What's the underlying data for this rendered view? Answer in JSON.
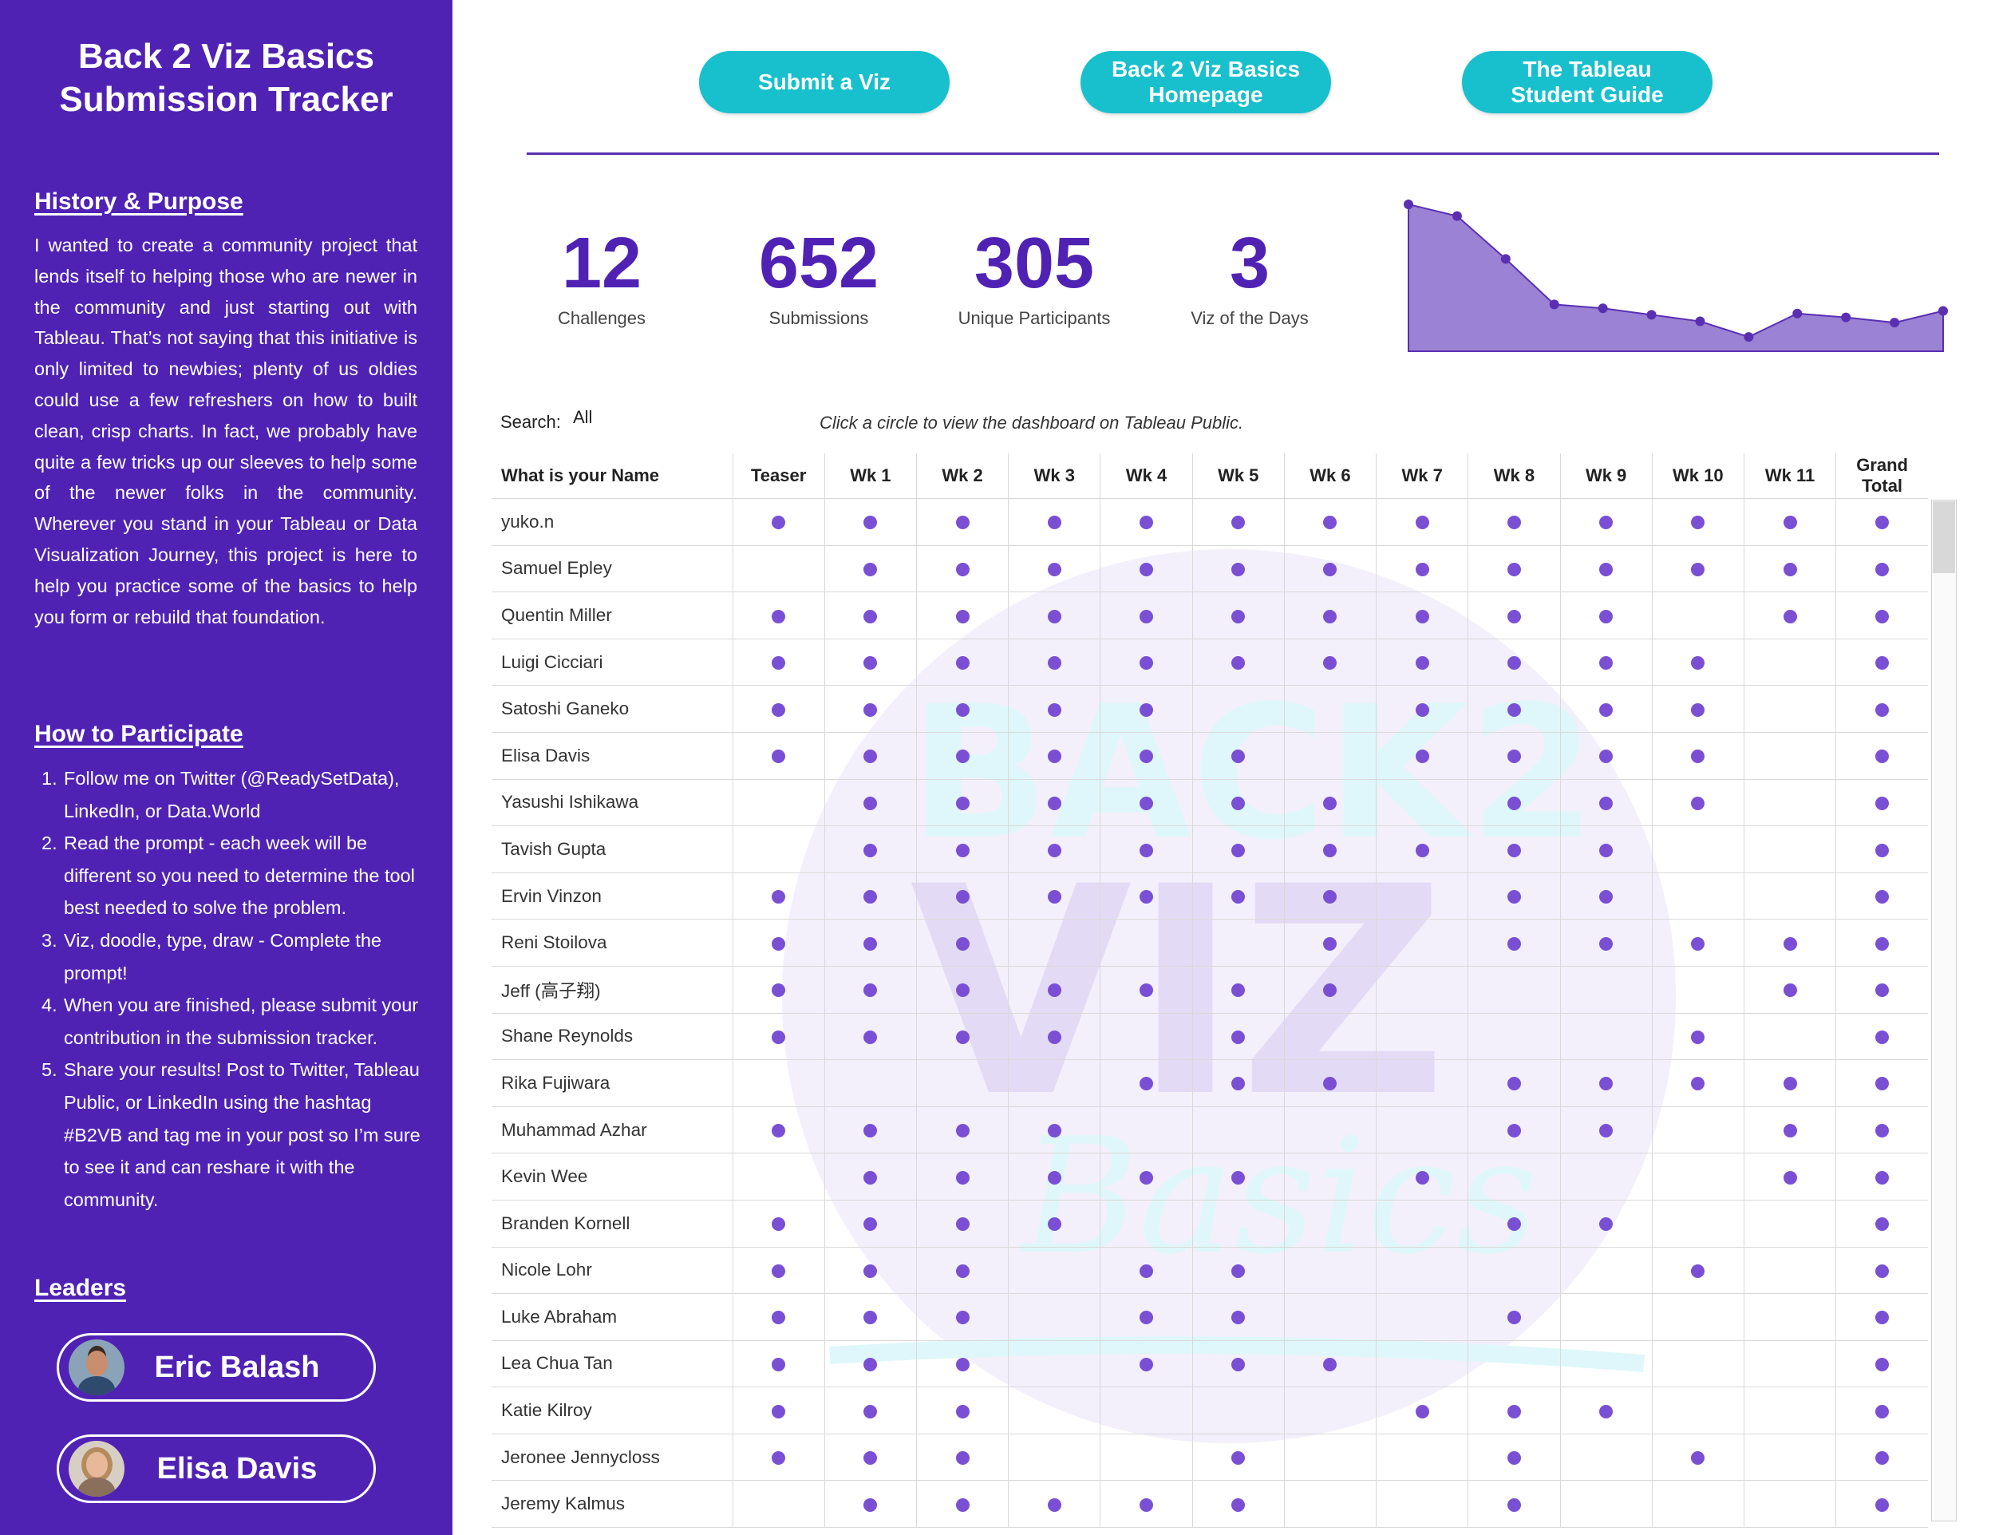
{
  "sidebar": {
    "title_line1": "Back 2 Viz Basics",
    "title_line2": "Submission Tracker",
    "history_heading": "History & Purpose",
    "history_text": "I wanted to create a community project that lends itself to helping those who are newer in the community and just starting out with Tableau. That’s not saying that this initiative is only limited to newbies; plenty of us oldies could use a few refreshers on how to built clean, crisp charts. In fact, we probably have quite a few tricks up our sleeves to help some of the newer folks in the community. Wherever you stand in your Tableau or Data Visualization Journey, this project is here to help you practice some of the basics to help you form or rebuild that foundation.",
    "participate_heading": "How to Participate",
    "steps": [
      {
        "num": "1.",
        "text": "Follow me on Twitter (@ReadySetData), LinkedIn, or Data.World"
      },
      {
        "num": "2.",
        "text": "Read the prompt - each week will be different so you need to determine the tool best needed to solve the problem."
      },
      {
        "num": "3.",
        "text": "Viz, doodle, type, draw - Complete the prompt!"
      },
      {
        "num": "4.",
        "text": "When you are finished, please submit your contribution in the submission tracker."
      },
      {
        "num": "5.",
        "text": "Share your results! Post to Twitter, Tableau Public, or LinkedIn using the hashtag #B2VB and tag me in your post so I’m sure to see it and can reshare it with the community."
      }
    ],
    "leaders_heading": "Leaders",
    "leaders": [
      {
        "name": "Eric Balash"
      },
      {
        "name": "Elisa Davis"
      }
    ]
  },
  "header": {
    "buttons": [
      {
        "label": "Submit a Viz"
      },
      {
        "label": "Back 2 Viz Basics\nHomepage"
      },
      {
        "label": "The Tableau\nStudent Guide"
      }
    ],
    "accent_color": "#17c0cc",
    "brand_color": "#5022b4"
  },
  "kpis": [
    {
      "value": "12",
      "label": "Challenges"
    },
    {
      "value": "652",
      "label": "Submissions"
    },
    {
      "value": "305",
      "label": "Unique Participants"
    },
    {
      "value": "3",
      "label": "Viz of the Days"
    }
  ],
  "chart_data": {
    "type": "area",
    "x": [
      "Teaser",
      "Wk 1",
      "Wk 2",
      "Wk 3",
      "Wk 4",
      "Wk 5",
      "Wk 6",
      "Wk 7",
      "Wk 8",
      "Wk 9",
      "Wk 10",
      "Wk 11"
    ],
    "values": [
      113,
      104,
      71,
      36,
      33,
      28,
      23,
      11,
      29,
      26,
      22,
      31
    ],
    "ylim": [
      0,
      113
    ],
    "color": "#9b82d4",
    "line_color": "#5a2fb2"
  },
  "filter": {
    "search_label": "Search:",
    "search_value": "All",
    "hint": "Click a circle to view the dashboard on Tableau Public."
  },
  "table": {
    "name_header": "What is your Name",
    "columns": [
      "Teaser",
      "Wk 1",
      "Wk 2",
      "Wk 3",
      "Wk 4",
      "Wk 5",
      "Wk 6",
      "Wk 7",
      "Wk 8",
      "Wk 9",
      "Wk 10",
      "Wk 11",
      "Grand\nTotal"
    ],
    "rows": [
      {
        "name": "yuko.n",
        "marks": [
          1,
          1,
          1,
          1,
          1,
          1,
          1,
          1,
          1,
          1,
          1,
          1,
          1
        ]
      },
      {
        "name": "Samuel Epley",
        "marks": [
          0,
          1,
          1,
          1,
          1,
          1,
          1,
          1,
          1,
          1,
          1,
          1,
          1
        ]
      },
      {
        "name": "Quentin Miller",
        "marks": [
          1,
          1,
          1,
          1,
          1,
          1,
          1,
          1,
          1,
          1,
          0,
          1,
          1
        ]
      },
      {
        "name": "Luigi Cicciari",
        "marks": [
          1,
          1,
          1,
          1,
          1,
          1,
          1,
          1,
          1,
          1,
          1,
          0,
          1
        ]
      },
      {
        "name": "Satoshi Ganeko",
        "marks": [
          1,
          1,
          1,
          1,
          1,
          0,
          0,
          1,
          1,
          1,
          1,
          0,
          1
        ]
      },
      {
        "name": "Elisa Davis",
        "marks": [
          1,
          1,
          1,
          1,
          1,
          1,
          0,
          1,
          1,
          1,
          1,
          0,
          1
        ]
      },
      {
        "name": "Yasushi Ishikawa",
        "marks": [
          0,
          1,
          1,
          1,
          1,
          1,
          1,
          0,
          1,
          1,
          1,
          0,
          1
        ]
      },
      {
        "name": "Tavish Gupta",
        "marks": [
          0,
          1,
          1,
          1,
          1,
          1,
          1,
          1,
          1,
          1,
          0,
          0,
          1
        ]
      },
      {
        "name": "Ervin Vinzon",
        "marks": [
          1,
          1,
          1,
          1,
          1,
          1,
          1,
          0,
          1,
          1,
          0,
          0,
          1
        ]
      },
      {
        "name": "Reni Stoilova",
        "marks": [
          1,
          1,
          1,
          0,
          0,
          0,
          1,
          0,
          1,
          1,
          1,
          1,
          1
        ]
      },
      {
        "name": "Jeff (高子翔)",
        "marks": [
          1,
          1,
          1,
          1,
          1,
          1,
          1,
          0,
          0,
          0,
          0,
          1,
          1
        ]
      },
      {
        "name": "Shane Reynolds",
        "marks": [
          1,
          1,
          1,
          1,
          0,
          1,
          0,
          0,
          0,
          0,
          1,
          0,
          1
        ]
      },
      {
        "name": "Rika Fujiwara",
        "marks": [
          0,
          0,
          0,
          0,
          1,
          1,
          1,
          0,
          1,
          1,
          1,
          1,
          1
        ]
      },
      {
        "name": "Muhammad Azhar",
        "marks": [
          1,
          1,
          1,
          1,
          0,
          0,
          0,
          0,
          1,
          1,
          0,
          1,
          1
        ]
      },
      {
        "name": "Kevin Wee",
        "marks": [
          0,
          1,
          1,
          1,
          1,
          1,
          0,
          1,
          0,
          0,
          0,
          1,
          1
        ]
      },
      {
        "name": "Branden Kornell",
        "marks": [
          1,
          1,
          1,
          1,
          0,
          0,
          0,
          0,
          1,
          1,
          0,
          0,
          1
        ]
      },
      {
        "name": "Nicole Lohr",
        "marks": [
          1,
          1,
          1,
          0,
          1,
          1,
          0,
          0,
          0,
          0,
          1,
          0,
          1
        ]
      },
      {
        "name": "Luke Abraham",
        "marks": [
          1,
          1,
          1,
          0,
          1,
          1,
          0,
          0,
          1,
          0,
          0,
          0,
          1
        ]
      },
      {
        "name": "Lea Chua Tan",
        "marks": [
          1,
          1,
          1,
          0,
          1,
          1,
          1,
          0,
          0,
          0,
          0,
          0,
          1
        ]
      },
      {
        "name": "Katie Kilroy",
        "marks": [
          1,
          1,
          1,
          0,
          0,
          0,
          0,
          1,
          1,
          1,
          0,
          0,
          1
        ]
      },
      {
        "name": "Jeronee Jennycloss",
        "marks": [
          1,
          1,
          1,
          0,
          0,
          1,
          0,
          0,
          1,
          0,
          1,
          0,
          1
        ]
      },
      {
        "name": "Jeremy Kalmus",
        "marks": [
          0,
          1,
          1,
          1,
          1,
          1,
          0,
          0,
          1,
          0,
          0,
          0,
          1
        ]
      }
    ],
    "dot_color": "#7a4fd4"
  },
  "icons": {
    "leader_avatar": "avatar",
    "mark": "circle-mark"
  }
}
